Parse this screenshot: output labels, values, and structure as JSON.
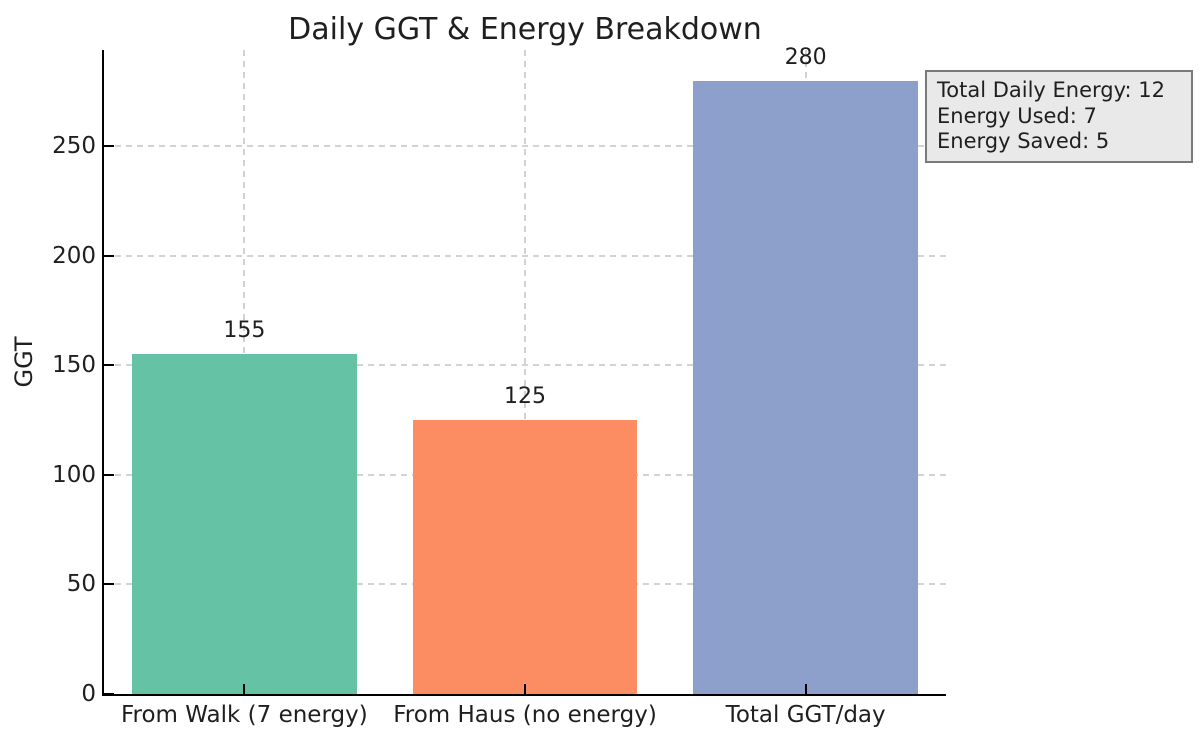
{
  "chart_data": {
    "type": "bar",
    "title": "Daily GGT & Energy Breakdown",
    "xlabel": "",
    "ylabel": "GGT",
    "categories": [
      "From Walk (7 energy)",
      "From Haus (no energy)",
      "Total GGT/day"
    ],
    "values": [
      155,
      125,
      280
    ],
    "value_labels": [
      "155",
      "125",
      "280"
    ],
    "bar_colors": [
      "#66c2a5",
      "#fc8d62",
      "#8da0cb"
    ],
    "yticks": [
      0,
      50,
      100,
      150,
      200,
      250
    ],
    "ylim": [
      0,
      294
    ],
    "grid": "dashed, both axes",
    "legend_position": "none",
    "annotation_box": {
      "lines": [
        "Total Daily Energy: 12",
        "Energy Used: 7",
        "Energy Saved: 5"
      ]
    }
  },
  "colors": {
    "background": "#ffffff",
    "spine": "#000000",
    "grid": "#d2d2d2",
    "text": "#1f1f1f",
    "annotation_bg": "#e9e9e9",
    "annotation_border": "#7a7a7a"
  }
}
